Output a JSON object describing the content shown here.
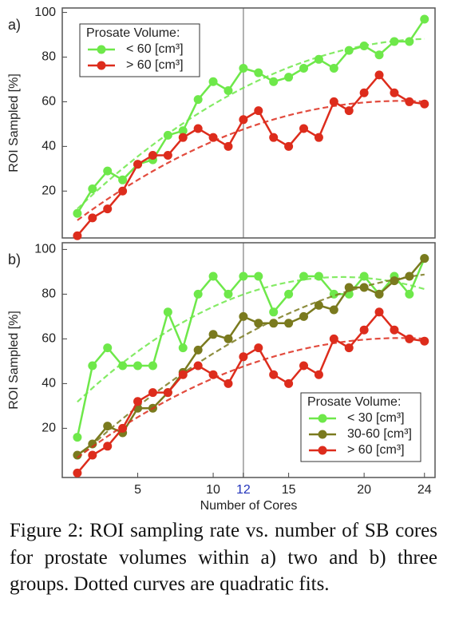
{
  "chart_data": [
    {
      "type": "line",
      "panel_label": "a)",
      "ylabel": "ROI Sampled [%]",
      "x": [
        1,
        2,
        3,
        4,
        5,
        6,
        7,
        8,
        9,
        10,
        11,
        12,
        13,
        14,
        15,
        16,
        17,
        18,
        19,
        20,
        21,
        22,
        23,
        24
      ],
      "xlim": [
        0,
        24.7
      ],
      "ylim": [
        -1,
        102
      ],
      "yticks": [
        20,
        40,
        60,
        80,
        100
      ],
      "highlight_x": 12,
      "legend_title": "Prosate Volume:",
      "legend_loc": "upper left",
      "fit": "quadratic",
      "series": [
        {
          "name": "< 60 [cm³]",
          "color": "#6ee84a",
          "values": [
            10,
            21,
            29,
            25,
            32,
            34,
            45,
            47,
            61,
            69,
            65,
            75,
            73,
            69,
            71,
            75,
            79,
            75,
            83,
            85,
            81,
            87,
            87,
            97
          ]
        },
        {
          "name": "> 60 [cm³]",
          "color": "#dd2c1c",
          "values": [
            0,
            8,
            12,
            20,
            32,
            36,
            36,
            44,
            48,
            44,
            40,
            52,
            56,
            44,
            40,
            48,
            44,
            60,
            56,
            64,
            72,
            64,
            60,
            59
          ]
        }
      ]
    },
    {
      "type": "line",
      "panel_label": "b)",
      "ylabel": "ROI Sampled [%]",
      "xlabel": "Number of Cores",
      "x": [
        1,
        2,
        3,
        4,
        5,
        6,
        7,
        8,
        9,
        10,
        11,
        12,
        13,
        14,
        15,
        16,
        17,
        18,
        19,
        20,
        21,
        22,
        23,
        24
      ],
      "xlim": [
        0,
        24.7
      ],
      "ylim": [
        -2,
        103
      ],
      "xticks": [
        5,
        10,
        12,
        15,
        20,
        24
      ],
      "yticks": [
        20,
        40,
        60,
        80,
        100
      ],
      "highlight_x": 12,
      "legend_title": "Prosate Volume:",
      "legend_loc": "lower right",
      "fit": "quadratic",
      "series": [
        {
          "name": "< 30 [cm³]",
          "color": "#6ee84a",
          "values": [
            16,
            48,
            56,
            48,
            48,
            48,
            72,
            56,
            80,
            88,
            80,
            88,
            88,
            72,
            80,
            88,
            88,
            80,
            80,
            88,
            80,
            88,
            80,
            96
          ]
        },
        {
          "name": "30-60 [cm³]",
          "color": "#7a7a1e",
          "values": [
            8,
            13,
            21,
            18,
            29,
            29,
            36,
            45,
            55,
            62,
            60,
            70,
            67,
            67,
            67,
            70,
            75,
            73,
            83,
            83,
            80,
            86,
            88,
            96
          ]
        },
        {
          "name": "> 60 [cm³]",
          "color": "#dd2c1c",
          "values": [
            0,
            8,
            12,
            20,
            32,
            36,
            36,
            44,
            48,
            44,
            40,
            52,
            56,
            44,
            40,
            48,
            44,
            60,
            56,
            64,
            72,
            64,
            60,
            59
          ]
        }
      ]
    }
  ],
  "caption": "Figure 2: ROI sampling rate vs. number of SB cores for prostate volumes within a) two and b) three groups. Dotted curves are quadratic fits."
}
